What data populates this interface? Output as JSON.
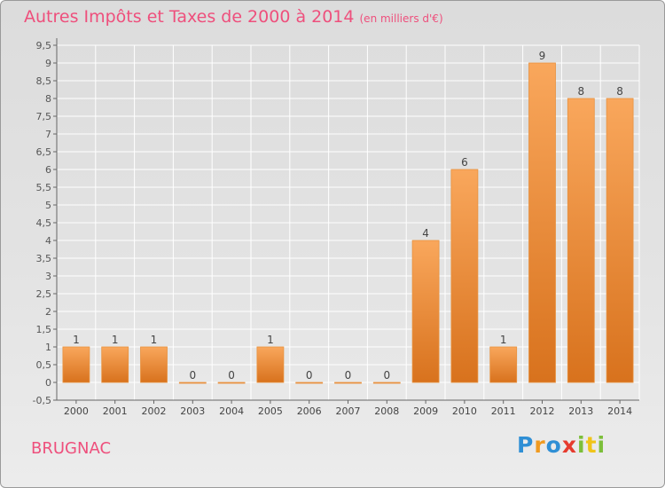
{
  "header": {
    "title": "Autres Impôts et Taxes de 2000 à 2014",
    "subtitle": "(en milliers d'€)"
  },
  "footer": {
    "city": "BRUGNAC",
    "logo": "Proxiti"
  },
  "colors": {
    "title": "#ee4f7c",
    "bar_light": "#f7a35a",
    "bar_dark": "#d9741f",
    "grid": "#ffffff",
    "background": "#e3e3e3"
  },
  "chart_data": {
    "type": "bar",
    "categories": [
      "2000",
      "2001",
      "2002",
      "2003",
      "2004",
      "2005",
      "2006",
      "2007",
      "2008",
      "2009",
      "2010",
      "2011",
      "2012",
      "2013",
      "2014"
    ],
    "values": [
      1,
      1,
      1,
      0,
      0,
      1,
      0,
      0,
      0,
      4,
      6,
      1,
      9,
      8,
      8
    ],
    "data_labels": [
      "1",
      "1",
      "1",
      "0",
      "0",
      "1",
      "0",
      "0",
      "0",
      "4",
      "6",
      "1",
      "9",
      "8",
      "8"
    ],
    "ylim": [
      -0.5,
      9.5
    ],
    "yticks": [
      "-0,5",
      "0",
      "0,5",
      "1",
      "1,5",
      "2",
      "2,5",
      "3",
      "3,5",
      "4",
      "4,5",
      "5",
      "5,5",
      "6",
      "6,5",
      "7",
      "7,5",
      "8",
      "8,5",
      "9",
      "9,5"
    ],
    "ytick_values": [
      -0.5,
      0,
      0.5,
      1,
      1.5,
      2,
      2.5,
      3,
      3.5,
      4,
      4.5,
      5,
      5.5,
      6,
      6.5,
      7,
      7.5,
      8,
      8.5,
      9,
      9.5
    ],
    "grid": true,
    "title": "Autres Impôts et Taxes de 2000 à 2014",
    "xlabel": "",
    "ylabel": ""
  }
}
